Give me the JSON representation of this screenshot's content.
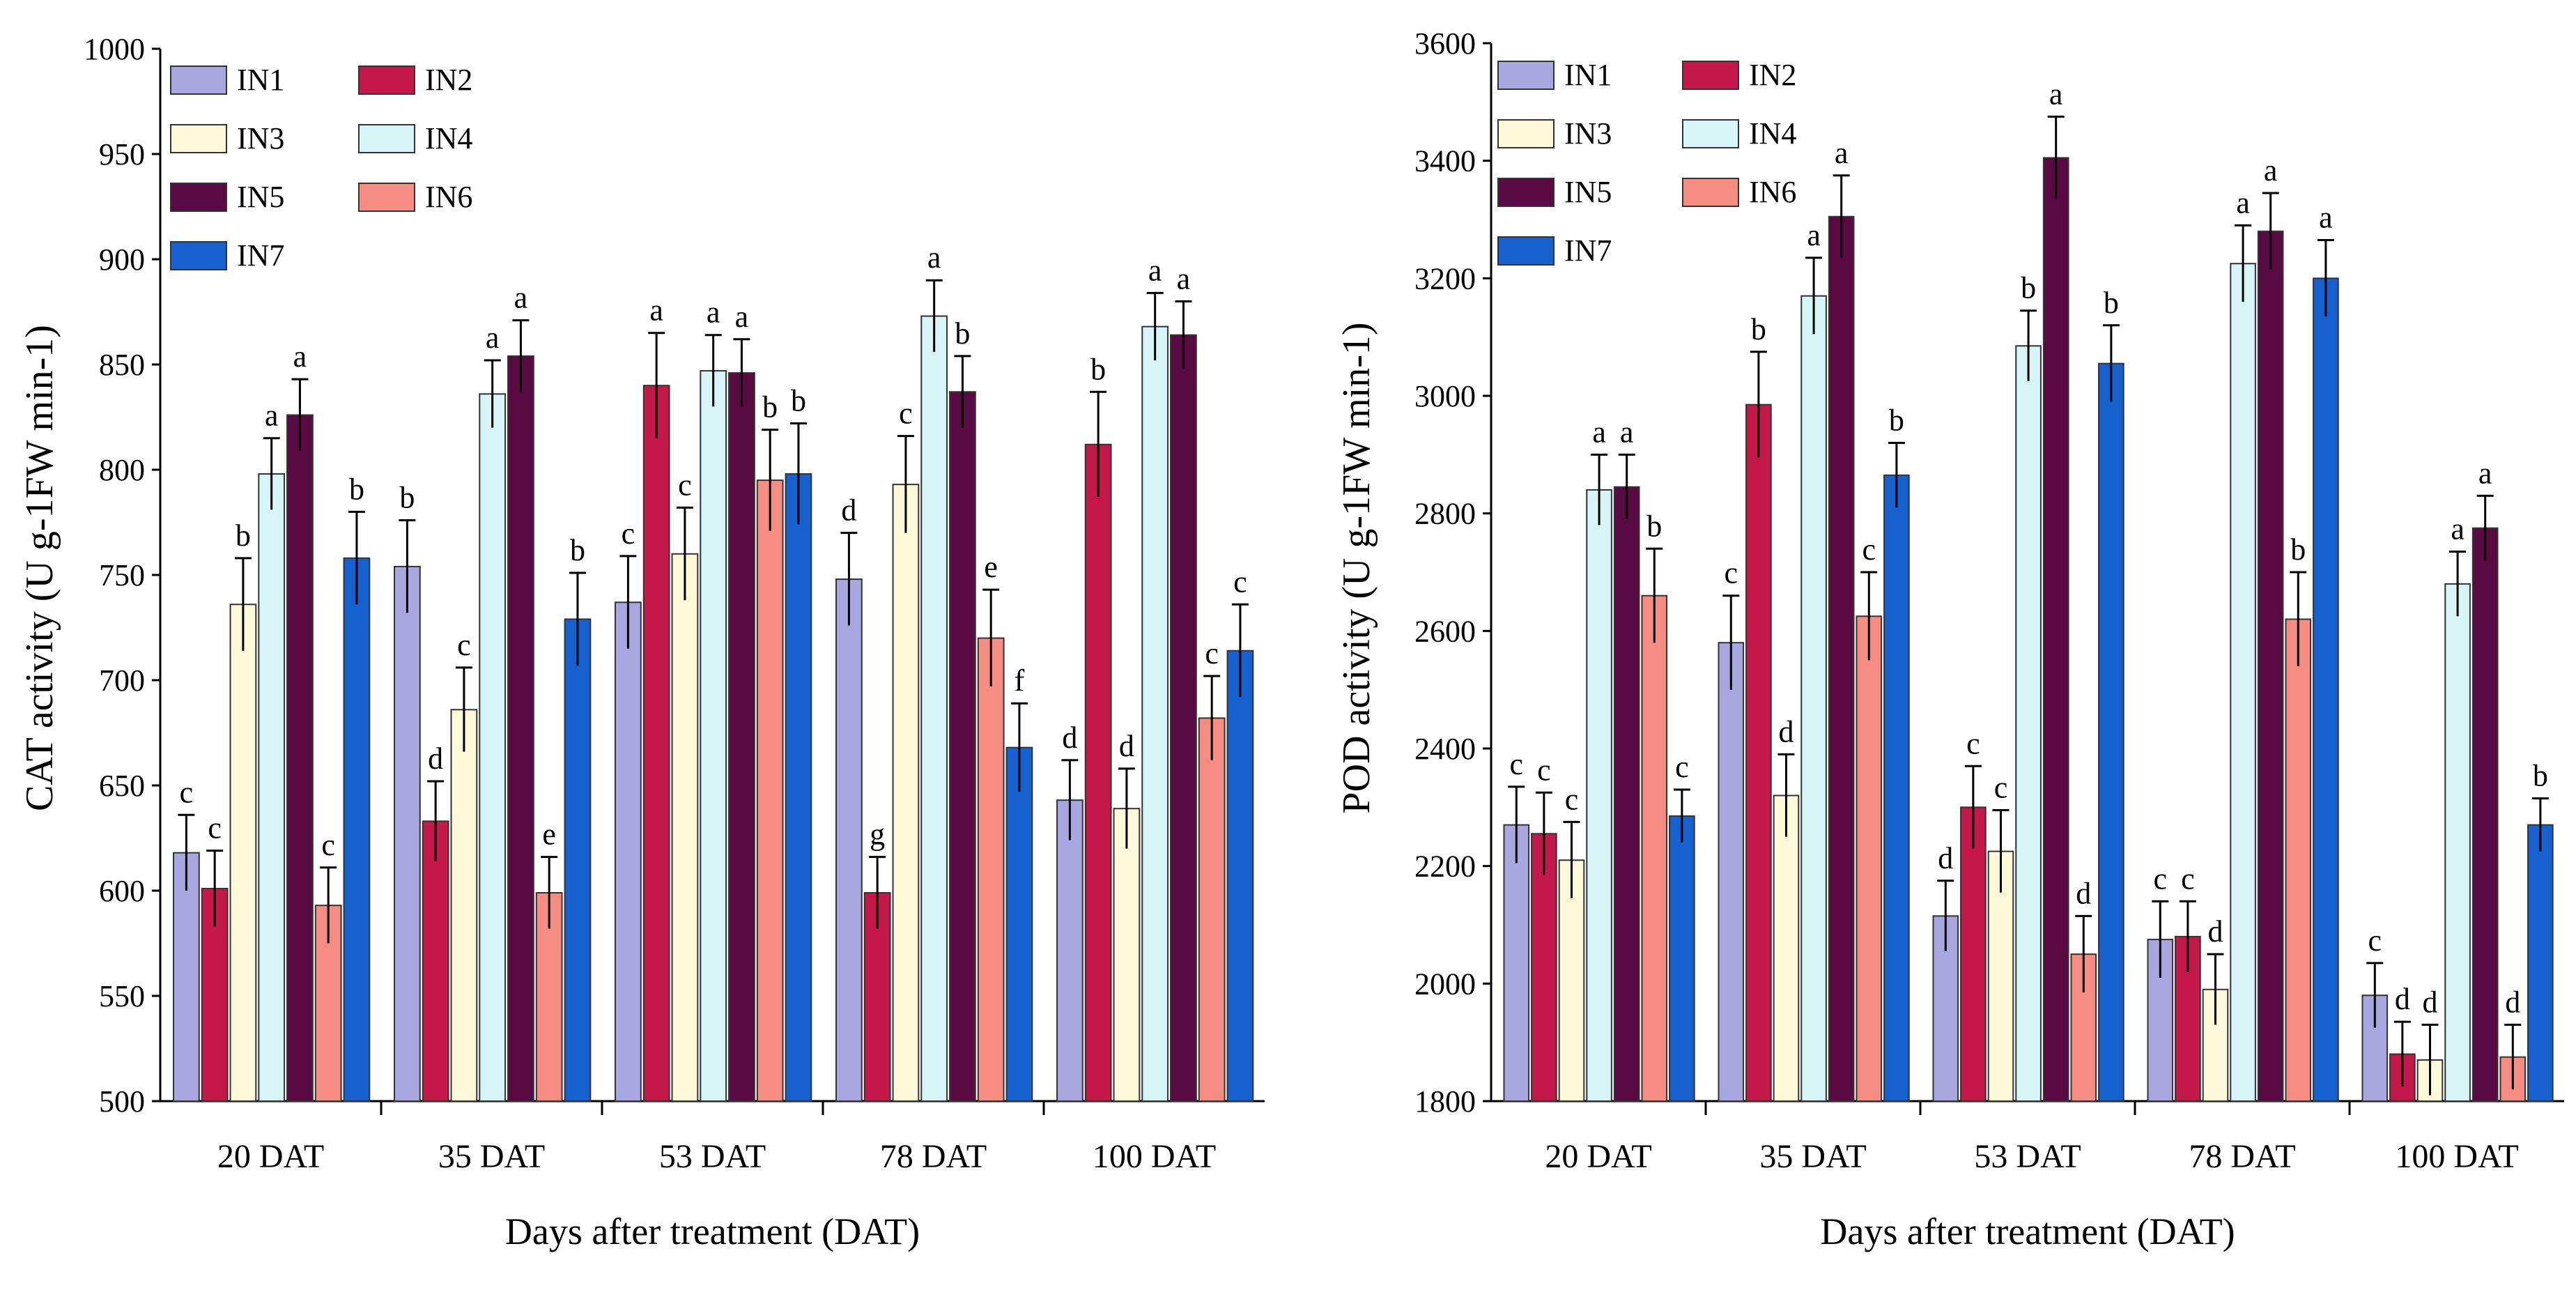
{
  "chart_data": [
    {
      "type": "bar",
      "ylabel": "CAT activity (U g-1FW min-1)",
      "xlabel": "Days after treatment (DAT)",
      "categories": [
        "20 DAT",
        "35 DAT",
        "53 DAT",
        "78 DAT",
        "100 DAT"
      ],
      "ylim": [
        500,
        1000
      ],
      "yticks": [
        500,
        550,
        600,
        650,
        700,
        750,
        800,
        850,
        900,
        950,
        1000
      ],
      "legend_position": "top-left",
      "grid": false,
      "series": [
        {
          "name": "IN1",
          "color": "#a9a6e0",
          "values": [
            618,
            754,
            737,
            748,
            643
          ],
          "errors": [
            18,
            22,
            22,
            22,
            19
          ],
          "letters": [
            "c",
            "b",
            "c",
            "d",
            "d"
          ]
        },
        {
          "name": "IN2",
          "color": "#c4174a",
          "values": [
            601,
            633,
            840,
            599,
            812
          ],
          "errors": [
            18,
            19,
            25,
            17,
            25
          ],
          "letters": [
            "c",
            "d",
            "a",
            "g",
            "b"
          ]
        },
        {
          "name": "IN3",
          "color": "#fdf9d9",
          "values": [
            736,
            686,
            760,
            793,
            639
          ],
          "errors": [
            22,
            20,
            22,
            23,
            19
          ],
          "letters": [
            "b",
            "c",
            "c",
            "c",
            "d"
          ]
        },
        {
          "name": "IN4",
          "color": "#d7f5f6",
          "values": [
            798,
            836,
            847,
            873,
            868
          ],
          "errors": [
            17,
            16,
            17,
            17,
            16
          ],
          "letters": [
            "a",
            "a",
            "a",
            "a",
            "a"
          ]
        },
        {
          "name": "IN5",
          "color": "#5a0a43",
          "values": [
            826,
            854,
            846,
            837,
            864
          ],
          "errors": [
            17,
            17,
            16,
            17,
            16
          ],
          "letters": [
            "a",
            "a",
            "a",
            "b",
            "a"
          ]
        },
        {
          "name": "IN6",
          "color": "#f58d82",
          "values": [
            593,
            599,
            795,
            720,
            682
          ],
          "errors": [
            18,
            17,
            24,
            23,
            20
          ],
          "letters": [
            "c",
            "e",
            "b",
            "e",
            "c"
          ]
        },
        {
          "name": "IN7",
          "color": "#1760cf",
          "values": [
            758,
            729,
            798,
            668,
            714
          ],
          "errors": [
            22,
            22,
            24,
            21,
            22
          ],
          "letters": [
            "b",
            "b",
            "b",
            "f",
            "c"
          ]
        }
      ]
    },
    {
      "type": "bar",
      "ylabel": "POD activity (U g-1FW min-1)",
      "xlabel": "Days after treatment (DAT)",
      "categories": [
        "20 DAT",
        "35 DAT",
        "53 DAT",
        "78 DAT",
        "100 DAT"
      ],
      "ylim": [
        1800,
        3600
      ],
      "yticks": [
        1800,
        2000,
        2200,
        2400,
        2600,
        2800,
        3000,
        3200,
        3400,
        3600
      ],
      "legend_position": "top-left",
      "grid": false,
      "series": [
        {
          "name": "IN1",
          "color": "#a9a6e0",
          "values": [
            2270,
            2580,
            2115,
            2075,
            1980
          ],
          "errors": [
            65,
            80,
            60,
            65,
            55
          ],
          "letters": [
            "c",
            "c",
            "d",
            "c",
            "c"
          ]
        },
        {
          "name": "IN2",
          "color": "#c4174a",
          "values": [
            2255,
            2985,
            2300,
            2080,
            1880
          ],
          "errors": [
            70,
            90,
            70,
            60,
            55
          ],
          "letters": [
            "c",
            "b",
            "c",
            "c",
            "d"
          ]
        },
        {
          "name": "IN3",
          "color": "#fdf9d9",
          "values": [
            2210,
            2320,
            2225,
            1990,
            1870
          ],
          "errors": [
            65,
            70,
            70,
            60,
            60
          ],
          "letters": [
            "c",
            "d",
            "c",
            "d",
            "d"
          ]
        },
        {
          "name": "IN4",
          "color": "#d7f5f6",
          "values": [
            2840,
            3170,
            3085,
            3225,
            2680
          ],
          "errors": [
            60,
            65,
            60,
            65,
            55
          ],
          "letters": [
            "a",
            "a",
            "b",
            "a",
            "a"
          ]
        },
        {
          "name": "IN5",
          "color": "#5a0a43",
          "values": [
            2845,
            3305,
            3405,
            3280,
            2775
          ],
          "errors": [
            55,
            70,
            70,
            65,
            55
          ],
          "letters": [
            "a",
            "a",
            "a",
            "a",
            "a"
          ]
        },
        {
          "name": "IN6",
          "color": "#f58d82",
          "values": [
            2660,
            2625,
            2050,
            2620,
            1875
          ],
          "errors": [
            80,
            75,
            65,
            80,
            55
          ],
          "letters": [
            "b",
            "c",
            "d",
            "b",
            "d"
          ]
        },
        {
          "name": "IN7",
          "color": "#1760cf",
          "values": [
            2285,
            2865,
            3055,
            3200,
            2270
          ],
          "errors": [
            45,
            55,
            65,
            65,
            45
          ],
          "letters": [
            "c",
            "b",
            "b",
            "a",
            "b"
          ]
        }
      ]
    }
  ]
}
